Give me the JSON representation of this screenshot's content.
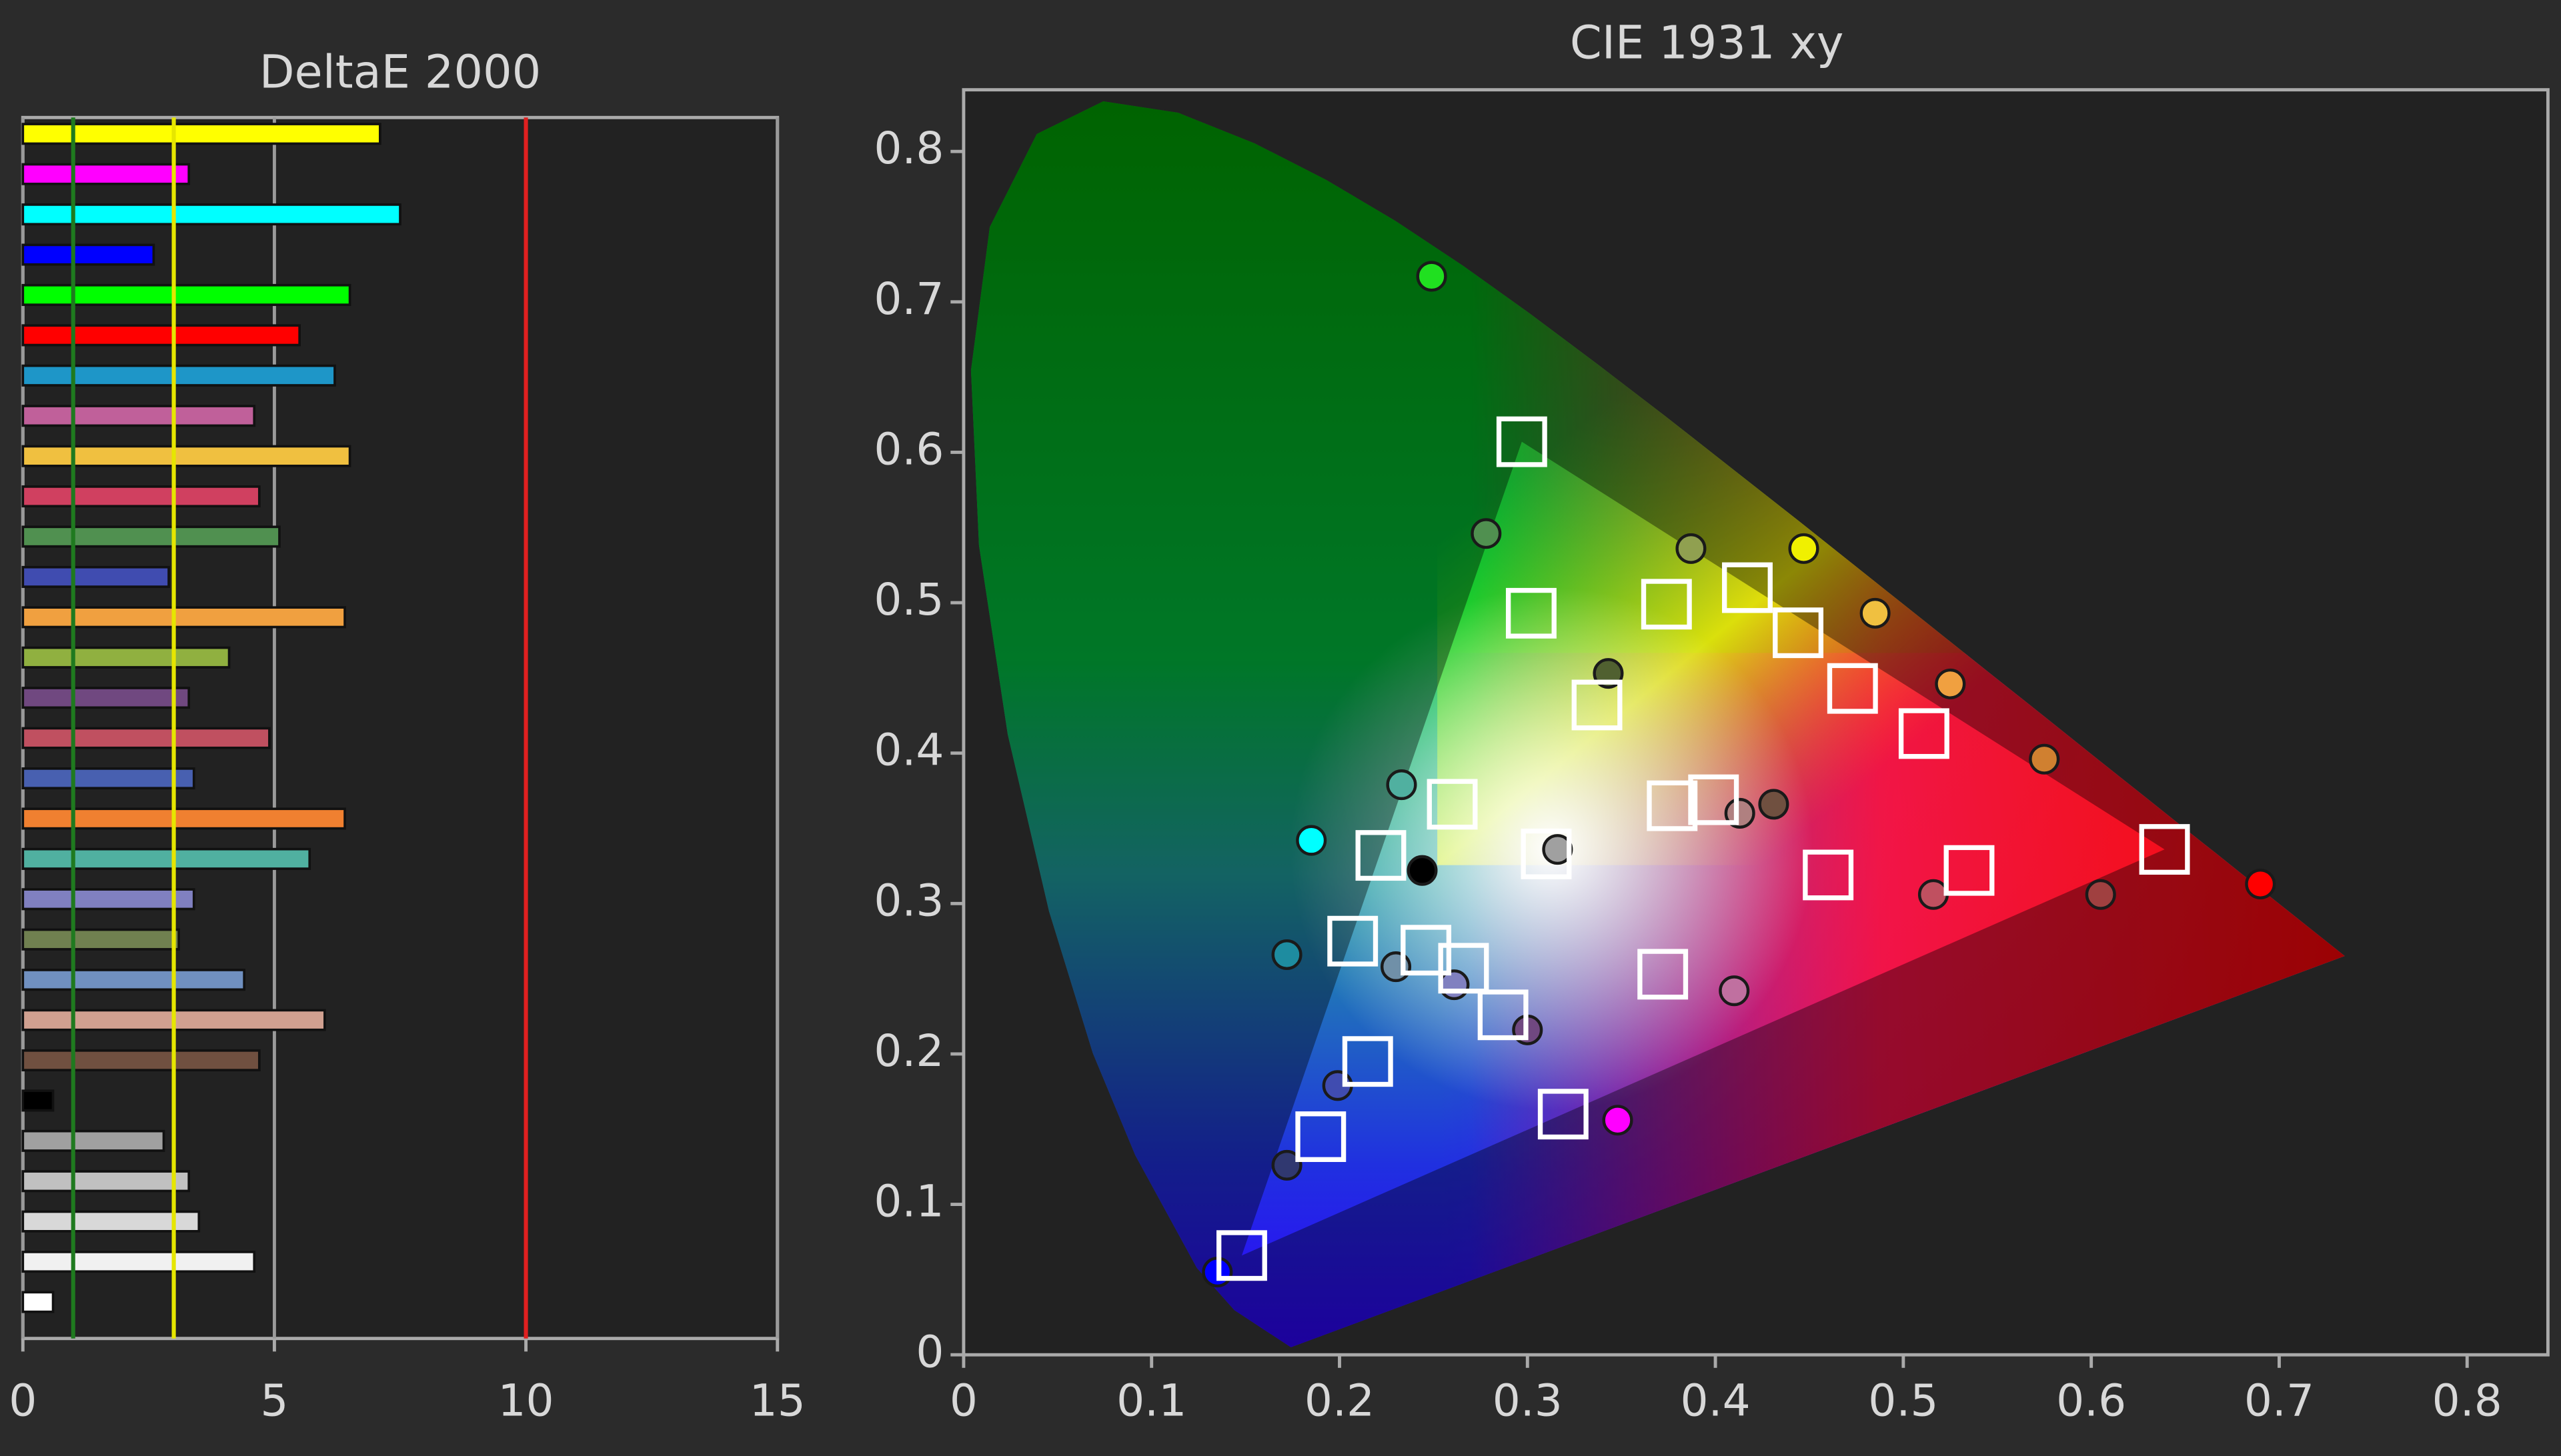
{
  "chart_data": [
    {
      "type": "bar",
      "orientation": "horizontal",
      "title": "DeltaE 2000",
      "values": [
        7.1,
        3.3,
        7.5,
        2.6,
        6.5,
        5.5,
        6.2,
        4.6,
        6.5,
        4.7,
        5.1,
        2.9,
        6.4,
        4.1,
        3.3,
        4.9,
        3.4,
        6.4,
        5.7,
        3.4,
        3.1,
        4.4,
        6.0,
        4.7,
        0.6,
        2.8,
        3.3,
        3.5,
        4.6,
        0.6
      ],
      "colors": [
        "#ffff00",
        "#ff00ff",
        "#00ffff",
        "#0000ff",
        "#00ff00",
        "#ff0000",
        "#1e96c8",
        "#c0609a",
        "#f0c040",
        "#d04060",
        "#509050",
        "#404cb0",
        "#f0a040",
        "#90b040",
        "#704880",
        "#c05060",
        "#4860b0",
        "#f08030",
        "#50b0a0",
        "#8080c0",
        "#708050",
        "#7090c0",
        "#d0a090",
        "#705040",
        "#000000",
        "#a0a0a0",
        "#c0c0c0",
        "#d8d8d8",
        "#f0f0f0",
        "#ffffff"
      ],
      "xlim": [
        0,
        15
      ],
      "xticks": [
        0,
        5,
        10,
        15
      ],
      "grid": true,
      "reference_lines": [
        {
          "value": 1,
          "color": "#1f7a1f"
        },
        {
          "value": 3,
          "color": "#e6e600"
        },
        {
          "value": 10,
          "color": "#e02020"
        }
      ]
    },
    {
      "type": "scatter",
      "title": "CIE 1931 xy",
      "xlim": [
        0,
        0.843
      ],
      "ylim": [
        0,
        0.841
      ],
      "xticks": [
        0,
        0.1,
        0.2,
        0.3,
        0.4,
        0.5,
        0.6,
        0.7,
        0.8
      ],
      "yticks": [
        0,
        0.1,
        0.2,
        0.3,
        0.4,
        0.5,
        0.6,
        0.7,
        0.8
      ],
      "measured": {
        "x": [
          0.249,
          0.278,
          0.387,
          0.447,
          0.485,
          0.343,
          0.525,
          0.575,
          0.233,
          0.185,
          0.244,
          0.316,
          0.413,
          0.431,
          0.516,
          0.605,
          0.69,
          0.172,
          0.23,
          0.261,
          0.3,
          0.41,
          0.348,
          0.199,
          0.172,
          0.135
        ],
        "y": [
          0.717,
          0.546,
          0.536,
          0.536,
          0.493,
          0.453,
          0.446,
          0.396,
          0.379,
          0.342,
          0.322,
          0.336,
          0.36,
          0.366,
          0.306,
          0.306,
          0.313,
          0.266,
          0.258,
          0.246,
          0.216,
          0.242,
          0.156,
          0.179,
          0.126,
          0.055
        ],
        "colors": [
          "#20e020",
          "#509050",
          "#90a050",
          "#f0f000",
          "#f0c040",
          "#506030",
          "#f0a040",
          "#d08030",
          "#50b0a0",
          "#00ffff",
          "#000000",
          "#a0a0a0",
          "#b08080",
          "#705040",
          "#c05060",
          "#a04040",
          "#ff0000",
          "#1e8ca0",
          "#7090a8",
          "#8080c0",
          "#704880",
          "#c070a0",
          "#ff00ff",
          "#404cb0",
          "#303870",
          "#0000ff"
        ]
      },
      "targets": {
        "x": [
          0.639,
          0.297,
          0.148,
          0.31,
          0.302,
          0.374,
          0.417,
          0.444,
          0.473,
          0.511,
          0.337,
          0.26,
          0.222,
          0.377,
          0.399,
          0.46,
          0.535,
          0.207,
          0.246,
          0.266,
          0.287,
          0.372,
          0.215,
          0.19,
          0.319
        ],
        "y": [
          0.336,
          0.607,
          0.066,
          0.333,
          0.493,
          0.499,
          0.51,
          0.48,
          0.443,
          0.413,
          0.432,
          0.366,
          0.332,
          0.365,
          0.369,
          0.319,
          0.322,
          0.275,
          0.269,
          0.257,
          0.226,
          0.253,
          0.195,
          0.145,
          0.16
        ],
        "color": "#ffffff"
      }
    }
  ]
}
